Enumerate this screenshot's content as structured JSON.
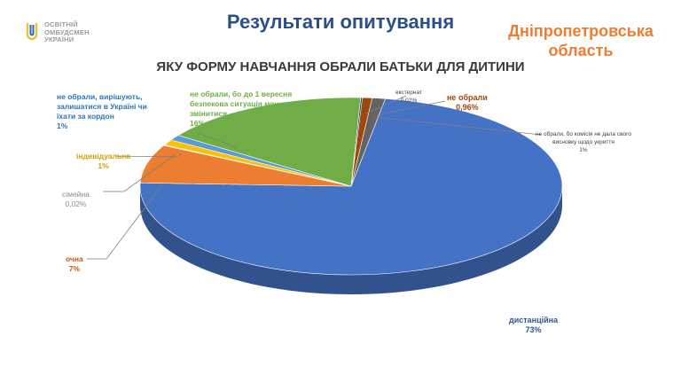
{
  "header": {
    "logo": {
      "line1": "ОСВІТНІЙ",
      "line2": "ОМБУДСМЕН",
      "line3": "УКРАЇНИ"
    },
    "title": "Результати опитування",
    "region_line1": "Дніпропетровська",
    "region_line2": "область"
  },
  "colors": {
    "distance": "#4472c4",
    "full_time": "#ed7d31",
    "family": "#a5a5a5",
    "individual": "#ffc000",
    "not_chosen_abroad": "#5b9bd5",
    "not_chosen_sept": "#70ad47",
    "external": "#264478",
    "not_chosen": "#9e480e",
    "not_chosen_commission": "#636363"
  },
  "chart_data": {
    "type": "pie",
    "title": "ЯКУ ФОРМУ НАВЧАННЯ ОБРАЛИ БАТЬКИ ДЛЯ ДИТИНИ",
    "slices": [
      {
        "key": "distance",
        "name": "дистанційна",
        "label": "73%",
        "value": 73
      },
      {
        "key": "full_time",
        "name": "очна",
        "label": "7%",
        "value": 7
      },
      {
        "key": "family",
        "name": "сімейна",
        "label": "0,02%",
        "value": 0.02
      },
      {
        "key": "individual",
        "name": "індивідуальна",
        "label": "1%",
        "value": 1
      },
      {
        "key": "not_chosen_abroad",
        "name": "не обрали, вирішують, залишатися в Україні чи їхати за кордон",
        "label": "1%",
        "value": 1
      },
      {
        "key": "not_chosen_sept",
        "name": "не обрали, бо до 1 вересня безпекова ситуація може змінитися",
        "label": "16%",
        "value": 16
      },
      {
        "key": "not_chosen_commission",
        "name": "не обрали, бо комісія не дала свого висновку щодо укриття",
        "label": "1%",
        "value": 1
      },
      {
        "key": "external",
        "name": "екстернат",
        "label": "0,02%",
        "value": 0.02
      },
      {
        "key": "not_chosen",
        "name": "не обрали",
        "label": "0,96%",
        "value": 0.96
      }
    ],
    "labels": {
      "distance": {
        "line1": "дистанційна",
        "line2": "73%"
      },
      "full_time": {
        "line1": "очна",
        "line2": "7%"
      },
      "family": {
        "line1": "сімейна",
        "line2": "0,02%"
      },
      "individual": {
        "line1": "індивідуальна",
        "line2": "1%"
      },
      "abroad": {
        "line1": "не обрали, вирішують,",
        "line2": "залишатися в Україні чи",
        "line3": "їхати за кордон",
        "line4": "1%"
      },
      "sept": {
        "line1": "не обрали, бо до 1 вересня",
        "line2": "безпекова ситуація може",
        "line3": "змінитися",
        "line4": "16%"
      },
      "external": {
        "line1": "екстернат",
        "line2": "0.02%"
      },
      "not_chosen": {
        "line1": "не обрали",
        "line2": "0,96%"
      },
      "commission": {
        "line1": "не обрали, бо комісія не дала свого",
        "line2": "висновку щодо укриття",
        "line3": "1%"
      }
    }
  }
}
